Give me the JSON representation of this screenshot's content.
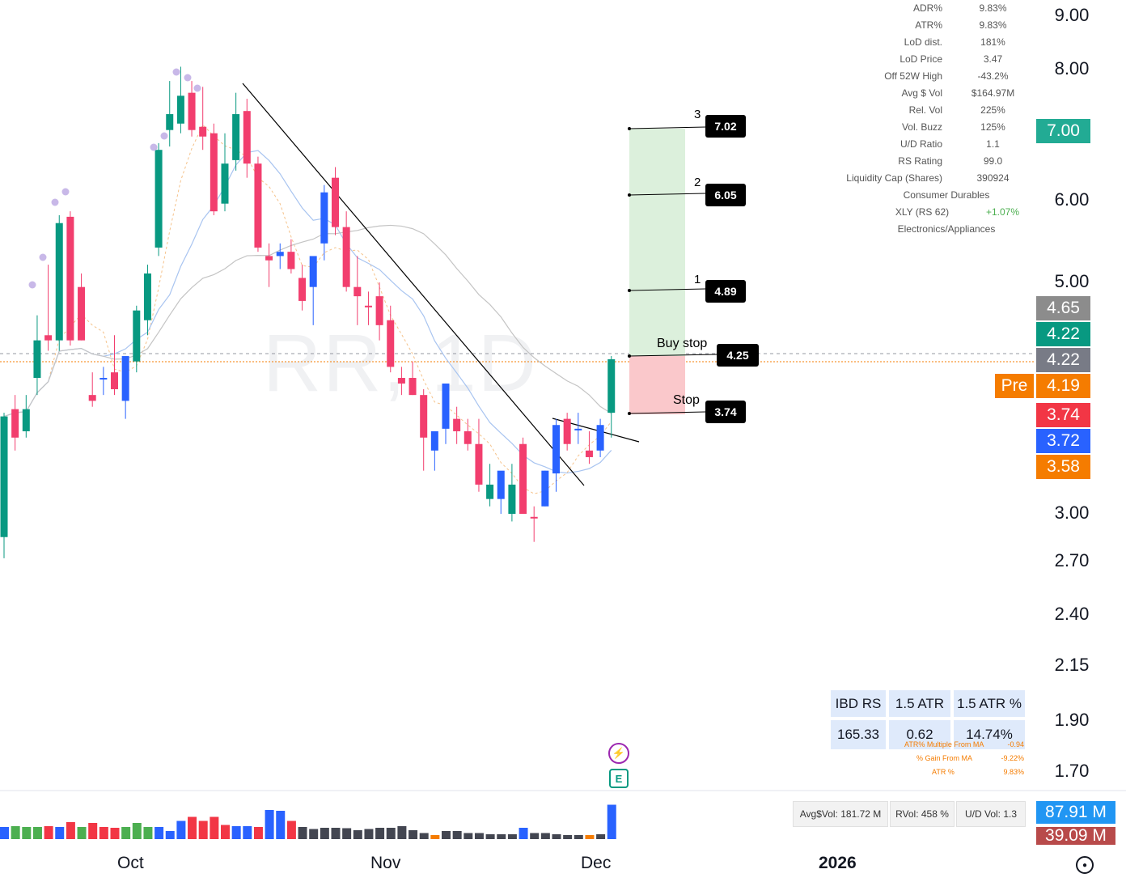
{
  "chart_data": {
    "type": "candlestick",
    "symbol_watermark": "RR, 1D",
    "y_scale": "log",
    "ylim": [
      1.55,
      9.3
    ],
    "y_ticks": [
      "9.00",
      "8.00",
      "7.00",
      "6.00",
      "5.00",
      "4.65",
      "4.22",
      "4.22",
      "4.19",
      "3.74",
      "3.72",
      "3.58",
      "3.00",
      "2.70",
      "2.40",
      "2.15",
      "1.90",
      "1.70"
    ],
    "x_ticks": [
      "Oct",
      "Nov",
      "Dec",
      "2026"
    ],
    "candles": [
      {
        "o": 2.85,
        "h": 3.75,
        "l": 2.72,
        "c": 3.72,
        "d": "up"
      },
      {
        "o": 3.55,
        "h": 3.9,
        "l": 3.45,
        "c": 3.78,
        "d": "down"
      },
      {
        "o": 3.6,
        "h": 3.9,
        "l": 3.55,
        "c": 3.78,
        "d": "up"
      },
      {
        "o": 4.05,
        "h": 4.65,
        "l": 3.9,
        "c": 4.4,
        "d": "up"
      },
      {
        "o": 4.45,
        "h": 5.2,
        "l": 4.3,
        "c": 4.4,
        "d": "down"
      },
      {
        "o": 4.4,
        "h": 5.8,
        "l": 4.3,
        "c": 5.7,
        "d": "up"
      },
      {
        "o": 5.78,
        "h": 5.85,
        "l": 4.35,
        "c": 4.4,
        "d": "down"
      },
      {
        "o": 4.95,
        "h": 5.1,
        "l": 4.4,
        "c": 4.4,
        "d": "down"
      },
      {
        "o": 3.9,
        "h": 4.1,
        "l": 3.8,
        "c": 3.85,
        "d": "down"
      },
      {
        "o": 4.05,
        "h": 4.15,
        "l": 3.9,
        "c": 4.05,
        "d": "up-blue"
      },
      {
        "o": 4.1,
        "h": 4.45,
        "l": 3.9,
        "c": 3.95,
        "d": "down"
      },
      {
        "o": 3.85,
        "h": 4.2,
        "l": 3.7,
        "c": 4.25,
        "d": "up-blue"
      },
      {
        "o": 4.2,
        "h": 4.75,
        "l": 4.1,
        "c": 4.7,
        "d": "up"
      },
      {
        "o": 4.6,
        "h": 5.2,
        "l": 4.45,
        "c": 5.1,
        "d": "up"
      },
      {
        "o": 5.4,
        "h": 6.8,
        "l": 5.3,
        "c": 6.7,
        "d": "up"
      },
      {
        "o": 7.0,
        "h": 7.8,
        "l": 6.75,
        "c": 7.25,
        "d": "up"
      },
      {
        "o": 7.1,
        "h": 8.05,
        "l": 6.95,
        "c": 7.55,
        "d": "up"
      },
      {
        "o": 7.6,
        "h": 7.8,
        "l": 6.9,
        "c": 7.0,
        "d": "down"
      },
      {
        "o": 7.05,
        "h": 7.7,
        "l": 6.7,
        "c": 6.9,
        "d": "down"
      },
      {
        "o": 6.95,
        "h": 7.1,
        "l": 5.8,
        "c": 5.85,
        "d": "down"
      },
      {
        "o": 5.95,
        "h": 6.95,
        "l": 5.85,
        "c": 6.5,
        "d": "up"
      },
      {
        "o": 6.55,
        "h": 7.6,
        "l": 6.4,
        "c": 7.25,
        "d": "up"
      },
      {
        "o": 7.3,
        "h": 7.5,
        "l": 6.3,
        "c": 6.5,
        "d": "down"
      },
      {
        "o": 6.5,
        "h": 6.6,
        "l": 5.35,
        "c": 5.4,
        "d": "down"
      },
      {
        "o": 5.3,
        "h": 5.45,
        "l": 4.95,
        "c": 5.25,
        "d": "down"
      },
      {
        "o": 5.3,
        "h": 5.45,
        "l": 5.15,
        "c": 5.35,
        "d": "up-blue"
      },
      {
        "o": 5.35,
        "h": 5.5,
        "l": 5.1,
        "c": 5.15,
        "d": "down"
      },
      {
        "o": 5.05,
        "h": 5.2,
        "l": 4.7,
        "c": 4.8,
        "d": "down"
      },
      {
        "o": 4.95,
        "h": 5.25,
        "l": 4.55,
        "c": 5.3,
        "d": "up-blue"
      },
      {
        "o": 5.45,
        "h": 6.2,
        "l": 5.25,
        "c": 6.1,
        "d": "up-blue"
      },
      {
        "o": 6.3,
        "h": 6.45,
        "l": 5.55,
        "c": 5.65,
        "d": "down"
      },
      {
        "o": 5.65,
        "h": 5.85,
        "l": 4.9,
        "c": 4.95,
        "d": "down"
      },
      {
        "o": 4.95,
        "h": 5.3,
        "l": 4.55,
        "c": 4.85,
        "d": "down"
      },
      {
        "o": 4.75,
        "h": 4.9,
        "l": 4.55,
        "c": 4.75,
        "d": "down"
      },
      {
        "o": 4.85,
        "h": 5.0,
        "l": 4.4,
        "c": 4.55,
        "d": "down"
      },
      {
        "o": 4.6,
        "h": 4.75,
        "l": 4.1,
        "c": 4.15,
        "d": "down"
      },
      {
        "o": 4.05,
        "h": 4.15,
        "l": 3.9,
        "c": 4.0,
        "d": "down"
      },
      {
        "o": 4.05,
        "h": 4.2,
        "l": 3.9,
        "c": 3.9,
        "d": "down"
      },
      {
        "o": 3.9,
        "h": 3.95,
        "l": 3.3,
        "c": 3.55,
        "d": "down"
      },
      {
        "o": 3.45,
        "h": 3.55,
        "l": 3.3,
        "c": 3.6,
        "d": "up-blue"
      },
      {
        "o": 3.62,
        "h": 3.95,
        "l": 3.5,
        "c": 4.0,
        "d": "up-blue"
      },
      {
        "o": 3.7,
        "h": 3.8,
        "l": 3.5,
        "c": 3.6,
        "d": "down"
      },
      {
        "o": 3.6,
        "h": 3.7,
        "l": 3.45,
        "c": 3.5,
        "d": "down"
      },
      {
        "o": 3.5,
        "h": 3.7,
        "l": 3.15,
        "c": 3.2,
        "d": "down"
      },
      {
        "o": 3.1,
        "h": 3.35,
        "l": 3.05,
        "c": 3.2,
        "d": "up"
      },
      {
        "o": 3.1,
        "h": 3.25,
        "l": 3.0,
        "c": 3.3,
        "d": "up-blue"
      },
      {
        "o": 3.0,
        "h": 3.35,
        "l": 2.95,
        "c": 3.2,
        "d": "up"
      },
      {
        "o": 3.5,
        "h": 3.55,
        "l": 3.0,
        "c": 3.0,
        "d": "down"
      },
      {
        "o": 2.98,
        "h": 3.05,
        "l": 2.82,
        "c": 2.98,
        "d": "down"
      },
      {
        "o": 3.05,
        "h": 3.3,
        "l": 3.05,
        "c": 3.3,
        "d": "up-blue"
      },
      {
        "o": 3.28,
        "h": 3.7,
        "l": 3.15,
        "c": 3.65,
        "d": "up-blue"
      },
      {
        "o": 3.7,
        "h": 3.75,
        "l": 3.45,
        "c": 3.5,
        "d": "down"
      },
      {
        "o": 3.62,
        "h": 3.75,
        "l": 3.5,
        "c": 3.62,
        "d": "up-blue"
      },
      {
        "o": 3.45,
        "h": 3.6,
        "l": 3.35,
        "c": 3.4,
        "d": "down"
      },
      {
        "o": 3.45,
        "h": 3.7,
        "l": 3.4,
        "c": 3.65,
        "d": "up-blue"
      },
      {
        "o": 3.75,
        "h": 4.25,
        "l": 3.55,
        "c": 4.22,
        "d": "up"
      }
    ],
    "volumes": [
      0.3,
      0.32,
      0.3,
      0.3,
      0.32,
      0.3,
      0.42,
      0.3,
      0.4,
      0.3,
      0.28,
      0.3,
      0.4,
      0.3,
      0.3,
      0.2,
      0.45,
      0.55,
      0.45,
      0.55,
      0.35,
      0.32,
      0.32,
      0.3,
      0.72,
      0.7,
      0.45,
      0.3,
      0.25,
      0.28,
      0.28,
      0.27,
      0.22,
      0.25,
      0.28,
      0.28,
      0.32,
      0.22,
      0.15,
      0.1,
      0.2,
      0.2,
      0.15,
      0.15,
      0.12,
      0.12,
      0.12,
      0.28,
      0.15,
      0.15,
      0.12,
      0.1,
      0.1,
      0.1,
      0.12,
      0.85
    ],
    "volume_colors": [
      "#2962ff",
      "#4caf50",
      "#4caf50",
      "#4caf50",
      "#f23645",
      "#2962ff",
      "#f23645",
      "#4caf50",
      "#f23645",
      "#f23645",
      "#f23645",
      "#4caf50",
      "#4caf50",
      "#4caf50",
      "#2962ff",
      "#2962ff",
      "#2962ff",
      "#f23645",
      "#f23645",
      "#f23645",
      "#f23645",
      "#2962ff",
      "#2962ff",
      "#f23645",
      "#2962ff",
      "#2962ff",
      "#f23645",
      "#434651",
      "#434651",
      "#434651",
      "#434651",
      "#434651",
      "#434651",
      "#434651",
      "#434651",
      "#434651",
      "#434651",
      "#434651",
      "#434651",
      "#f57c00",
      "#434651",
      "#434651",
      "#434651",
      "#434651",
      "#434651",
      "#434651",
      "#434651",
      "#2962ff",
      "#434651",
      "#434651",
      "#434651",
      "#434651",
      "#434651",
      "#f57c00",
      "#434651",
      "#2962ff"
    ]
  },
  "stats": [
    {
      "k": "ADR%",
      "v": "9.83%"
    },
    {
      "k": "ATR%",
      "v": "9.83%"
    },
    {
      "k": "LoD dist.",
      "v": "181%"
    },
    {
      "k": "LoD Price",
      "v": "3.47"
    },
    {
      "k": "Off 52W High",
      "v": "-43.2%"
    },
    {
      "k": "Avg $ Vol",
      "v": "$164.97M"
    },
    {
      "k": "Rel. Vol",
      "v": "225%"
    },
    {
      "k": "Vol. Buzz",
      "v": "125%"
    },
    {
      "k": "U/D Ratio",
      "v": "1.1"
    },
    {
      "k": "RS Rating",
      "v": "99.0"
    },
    {
      "k": "Liquidity Cap (Shares)",
      "v": "390924"
    }
  ],
  "sector": "Consumer Durables",
  "etf_label": "XLY (RS 62)",
  "etf_change": "+1.07%",
  "industry": "Electronics/Appliances",
  "targets": [
    {
      "num": "3",
      "price": "7.02"
    },
    {
      "num": "2",
      "price": "6.05"
    },
    {
      "num": "1",
      "price": "4.89"
    }
  ],
  "buy_stop_label": "Buy stop",
  "buy_stop_price": "4.25",
  "stop_label": "Stop",
  "stop_price": "3.74",
  "price_tags": [
    {
      "v": "7.00",
      "color": "#22ab94"
    },
    {
      "v": "4.65",
      "color": "#8c8c8c"
    },
    {
      "v": "4.22",
      "color": "#089981"
    },
    {
      "v": "4.22",
      "color": "#787b86"
    },
    {
      "v": "4.19",
      "color": "#f57c00"
    },
    {
      "v": "3.74",
      "color": "#f23645"
    },
    {
      "v": "3.72",
      "color": "#2962ff"
    },
    {
      "v": "3.58",
      "color": "#f57c00"
    }
  ],
  "pre_label": "Pre",
  "rs_table": {
    "headers": [
      "IBD RS",
      "1.5 ATR",
      "1.5 ATR %"
    ],
    "values": [
      "165.33",
      "0.62",
      "14.74%"
    ]
  },
  "mini_stats": [
    {
      "k": "ATR% Multiple From MA",
      "v": "-0.94"
    },
    {
      "k": "% Gain From MA",
      "v": "-9.22%"
    },
    {
      "k": "ATR %",
      "v": "9.83%"
    }
  ],
  "vol_boxes": [
    "Avg$Vol: 181.72 M",
    "RVol: 458 %",
    "U/D Vol: 1.3"
  ],
  "vol_tags": [
    {
      "v": "87.91 M",
      "color": "#2196f3"
    },
    {
      "v": "39.09 M",
      "color": "#b84a4a"
    }
  ],
  "x_labels": [
    "Oct",
    "Nov",
    "Dec",
    "2026"
  ]
}
